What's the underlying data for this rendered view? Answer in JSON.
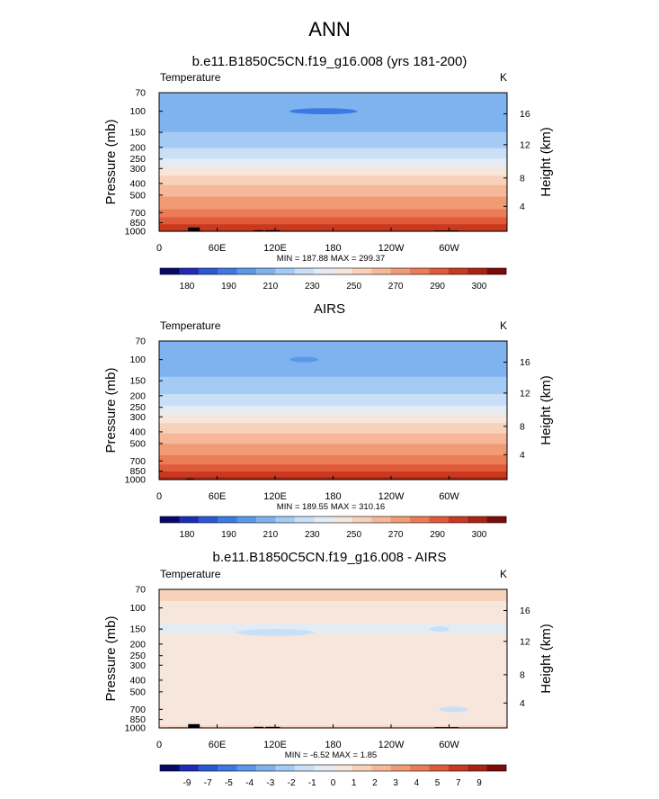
{
  "figure": {
    "title": "ANN"
  },
  "colors": {
    "background": "#ffffff",
    "frame": "#000000",
    "topography": "#000000",
    "abs_palette": [
      "#08086b",
      "#1c2cb5",
      "#2b59d6",
      "#3c7ae3",
      "#5a99ea",
      "#7fb3f0",
      "#a4cbf4",
      "#c8dff7",
      "#e3ecf6",
      "#f6e6dc",
      "#f8d1ba",
      "#f6b898",
      "#f09b76",
      "#ea7c56",
      "#e15a3a",
      "#c9391f",
      "#a82513",
      "#7c0c08"
    ],
    "diff_palette": [
      "#08086b",
      "#1c2cb5",
      "#2b59d6",
      "#3c7ae3",
      "#5a99ea",
      "#7fb3f0",
      "#a4cbf4",
      "#c8dff7",
      "#e3ecf6",
      "#f6e6dc",
      "#f8d1ba",
      "#f6b898",
      "#f09b76",
      "#ea7c56",
      "#e15a3a",
      "#c9391f",
      "#a82513",
      "#7c0c08"
    ]
  },
  "chart_data": [
    {
      "type": "heatmap",
      "title": "b.e11.B1850C5CN.f19_g16.008 (yrs 181-200)",
      "variable": "Temperature",
      "units": "K",
      "ylabel": "Pressure (mb)",
      "ylabel_right": "Height (km)",
      "xlabel": "",
      "x_ticks": [
        "0",
        "60E",
        "120E",
        "180",
        "120W",
        "60W"
      ],
      "x_range": [
        0,
        360
      ],
      "y_ticks": [
        "70",
        "100",
        "150",
        "200",
        "250",
        "300",
        "400",
        "500",
        "700",
        "850",
        "1000"
      ],
      "y_range": [
        70,
        1000
      ],
      "right_ticks": [
        "16",
        "12",
        "8",
        "4"
      ],
      "stats_text": "MIN = 187.88  MAX = 299.37",
      "colorbar_labels": [
        "180",
        "190",
        "210",
        "230",
        "250",
        "270",
        "290",
        "300"
      ],
      "levels": [
        175,
        180,
        185,
        190,
        200,
        210,
        220,
        230,
        240,
        250,
        260,
        270,
        280,
        285,
        290,
        295,
        300
      ],
      "profile": [
        {
          "p": 70,
          "v": 204
        },
        {
          "p": 85,
          "v": 203
        },
        {
          "p": 100,
          "v": 202
        },
        {
          "p": 115,
          "v": 203
        },
        {
          "p": 130,
          "v": 206
        },
        {
          "p": 150,
          "v": 210
        },
        {
          "p": 175,
          "v": 214
        },
        {
          "p": 200,
          "v": 219
        },
        {
          "p": 225,
          "v": 225
        },
        {
          "p": 250,
          "v": 231
        },
        {
          "p": 275,
          "v": 237
        },
        {
          "p": 300,
          "v": 243
        },
        {
          "p": 350,
          "v": 251
        },
        {
          "p": 400,
          "v": 258
        },
        {
          "p": 450,
          "v": 264
        },
        {
          "p": 500,
          "v": 269
        },
        {
          "p": 575,
          "v": 275
        },
        {
          "p": 650,
          "v": 280
        },
        {
          "p": 725,
          "v": 283
        },
        {
          "p": 800,
          "v": 287
        },
        {
          "p": 875,
          "v": 290
        },
        {
          "p": 950,
          "v": 293
        },
        {
          "p": 1000,
          "v": 295
        }
      ],
      "features": [
        {
          "kind": "minimum",
          "lon": 170,
          "lon_width": 70,
          "p": 100,
          "value": 188
        }
      ],
      "topography": [
        {
          "lon": 10,
          "lon_end": 45,
          "p_top": 990
        },
        {
          "lon": 30,
          "lon_end": 42,
          "p_top": 930
        },
        {
          "lon": 98,
          "lon_end": 108,
          "p_top": 980
        },
        {
          "lon": 110,
          "lon_end": 125,
          "p_top": 980
        },
        {
          "lon": 285,
          "lon_end": 310,
          "p_top": 985
        }
      ]
    },
    {
      "type": "heatmap",
      "title": "AIRS",
      "variable": "Temperature",
      "units": "K",
      "ylabel": "Pressure (mb)",
      "ylabel_right": "Height (km)",
      "xlabel": "",
      "x_ticks": [
        "0",
        "60E",
        "120E",
        "180",
        "120W",
        "60W"
      ],
      "x_range": [
        0,
        360
      ],
      "y_ticks": [
        "70",
        "100",
        "150",
        "200",
        "250",
        "300",
        "400",
        "500",
        "700",
        "850",
        "1000"
      ],
      "y_range": [
        70,
        1000
      ],
      "right_ticks": [
        "16",
        "12",
        "8",
        "4"
      ],
      "stats_text": "MIN = 189.55  MAX = 310.16",
      "colorbar_labels": [
        "180",
        "190",
        "210",
        "230",
        "250",
        "270",
        "290",
        "300"
      ],
      "levels": [
        175,
        180,
        185,
        190,
        200,
        210,
        220,
        230,
        240,
        250,
        260,
        270,
        280,
        285,
        290,
        295,
        300
      ],
      "profile": [
        {
          "p": 70,
          "v": 205
        },
        {
          "p": 85,
          "v": 204
        },
        {
          "p": 100,
          "v": 204
        },
        {
          "p": 115,
          "v": 205
        },
        {
          "p": 130,
          "v": 208
        },
        {
          "p": 150,
          "v": 212
        },
        {
          "p": 175,
          "v": 216
        },
        {
          "p": 200,
          "v": 221
        },
        {
          "p": 225,
          "v": 226
        },
        {
          "p": 250,
          "v": 232
        },
        {
          "p": 275,
          "v": 238
        },
        {
          "p": 300,
          "v": 244
        },
        {
          "p": 350,
          "v": 252
        },
        {
          "p": 400,
          "v": 259
        },
        {
          "p": 450,
          "v": 265
        },
        {
          "p": 500,
          "v": 270
        },
        {
          "p": 575,
          "v": 276
        },
        {
          "p": 650,
          "v": 281
        },
        {
          "p": 725,
          "v": 284
        },
        {
          "p": 800,
          "v": 288
        },
        {
          "p": 875,
          "v": 291
        },
        {
          "p": 950,
          "v": 294
        },
        {
          "p": 1000,
          "v": 297
        }
      ],
      "features": [
        {
          "kind": "minimum",
          "lon": 150,
          "lon_width": 30,
          "p": 100,
          "value": 190
        }
      ],
      "topography": [
        {
          "lon": 28,
          "lon_end": 36,
          "p_top": 980
        }
      ]
    },
    {
      "type": "heatmap",
      "title": "b.e11.B1850C5CN.f19_g16.008 - AIRS",
      "variable": "Temperature",
      "units": "K",
      "ylabel": "Pressure (mb)",
      "ylabel_right": "Height (km)",
      "xlabel": "",
      "x_ticks": [
        "0",
        "60E",
        "120E",
        "180",
        "120W",
        "60W"
      ],
      "x_range": [
        0,
        360
      ],
      "y_ticks": [
        "70",
        "100",
        "150",
        "200",
        "250",
        "300",
        "400",
        "500",
        "700",
        "850",
        "1000"
      ],
      "y_range": [
        70,
        1000
      ],
      "right_ticks": [
        "16",
        "12",
        "8",
        "4"
      ],
      "stats_text": "MIN = -6.52  MAX =  1.85",
      "colorbar_labels": [
        "-9",
        "-7",
        "-5",
        "-4",
        "-3",
        "-2",
        "-1",
        "0",
        "1",
        "2",
        "3",
        "4",
        "5",
        "7",
        "9"
      ],
      "levels": [
        -10,
        -9,
        -8,
        -7,
        -6,
        -5,
        -4,
        -3,
        -2,
        -1,
        0,
        1,
        2,
        3,
        4,
        5,
        7,
        9
      ],
      "profile": [
        {
          "p": 70,
          "v": -0.6
        },
        {
          "p": 85,
          "v": -0.9
        },
        {
          "p": 100,
          "v": -1.4
        },
        {
          "p": 120,
          "v": -1.7
        },
        {
          "p": 150,
          "v": -2.2
        },
        {
          "p": 175,
          "v": -1.8
        },
        {
          "p": 200,
          "v": -1.6
        },
        {
          "p": 250,
          "v": -1.5
        },
        {
          "p": 300,
          "v": -1.4
        },
        {
          "p": 400,
          "v": -1.1
        },
        {
          "p": 500,
          "v": -1.2
        },
        {
          "p": 600,
          "v": -1.4
        },
        {
          "p": 700,
          "v": -1.5
        },
        {
          "p": 850,
          "v": -1.3
        },
        {
          "p": 1000,
          "v": -0.9
        }
      ],
      "features": [
        {
          "kind": "minimum",
          "lon": 120,
          "lon_width": 80,
          "p": 160,
          "value": -3.5
        },
        {
          "kind": "minimum",
          "lon": 290,
          "lon_width": 20,
          "p": 150,
          "value": -3.2
        },
        {
          "kind": "minimum",
          "lon": 305,
          "lon_width": 30,
          "p": 700,
          "value": -3.1
        }
      ],
      "topography": [
        {
          "lon": 10,
          "lon_end": 45,
          "p_top": 990
        },
        {
          "lon": 30,
          "lon_end": 42,
          "p_top": 930
        },
        {
          "lon": 98,
          "lon_end": 108,
          "p_top": 980
        },
        {
          "lon": 110,
          "lon_end": 125,
          "p_top": 980
        },
        {
          "lon": 285,
          "lon_end": 310,
          "p_top": 985
        }
      ]
    }
  ]
}
